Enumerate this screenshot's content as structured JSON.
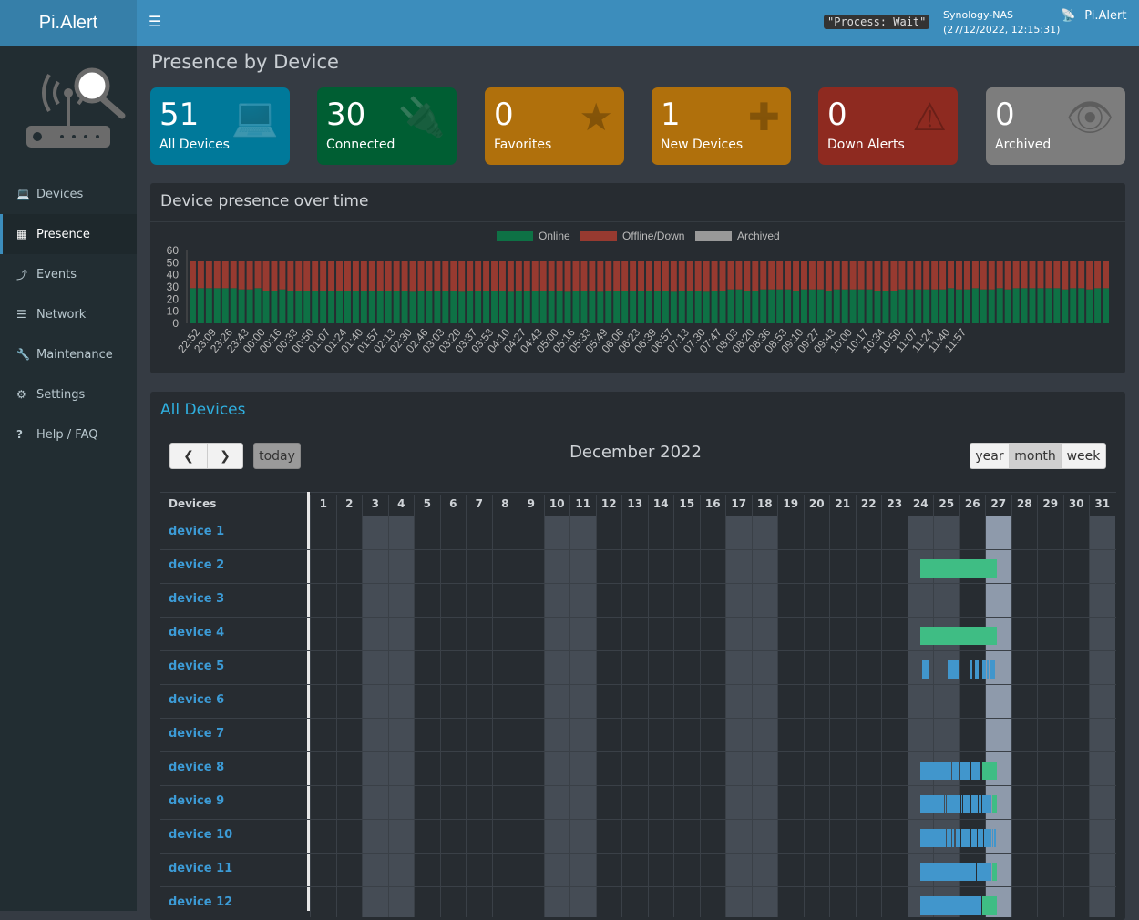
{
  "header": {
    "logo": "Pi.Alert",
    "menu_icon": "hamburger-icon",
    "process_status": "\"Process: Wait\"",
    "host": "Synology-NAS",
    "datetime": "(27/12/2022, 12:15:31)",
    "brand": "Pi.Alert",
    "brand_icon": "router-search-icon"
  },
  "sidebar": {
    "items": [
      {
        "label": "Devices",
        "icon": "laptop-icon"
      },
      {
        "label": "Presence",
        "icon": "calendar-icon",
        "active": true
      },
      {
        "label": "Events",
        "icon": "bolt-icon"
      },
      {
        "label": "Network",
        "icon": "server-icon"
      },
      {
        "label": "Maintenance",
        "icon": "wrench-icon"
      },
      {
        "label": "Settings",
        "icon": "gear-icon"
      },
      {
        "label": "Help / FAQ",
        "icon": "question-icon"
      }
    ]
  },
  "page_title": "Presence by Device",
  "cards": [
    {
      "value": "51",
      "label": "All Devices",
      "icon": "laptop-icon",
      "color": "#00799a"
    },
    {
      "value": "30",
      "label": "Connected",
      "icon": "plug-icon",
      "color": "#005e33"
    },
    {
      "value": "0",
      "label": "Favorites",
      "icon": "star-icon",
      "color": "#b0700c"
    },
    {
      "value": "1",
      "label": "New Devices",
      "icon": "plus-icon",
      "color": "#b0700c"
    },
    {
      "value": "0",
      "label": "Down Alerts",
      "icon": "warning-icon",
      "color": "#8e2a20"
    },
    {
      "value": "0",
      "label": "Archived",
      "icon": "eye-slash-icon",
      "color": "#7d7d7d"
    }
  ],
  "chart_data": {
    "type": "bar",
    "stacked": true,
    "title": "Device presence over time",
    "legend": "top",
    "ylim": [
      0,
      60
    ],
    "yticks": [
      0,
      10,
      20,
      30,
      40,
      50,
      60
    ],
    "series_names": [
      "Online",
      "Offline/Down",
      "Archived"
    ],
    "colors": {
      "Online": "#0e7145",
      "Offline/Down": "#973a30",
      "Archived": "#999999"
    },
    "tick_labels": [
      "22:52",
      "23:09",
      "23:26",
      "23:43",
      "00:00",
      "00:16",
      "00:33",
      "00:50",
      "01:07",
      "01:24",
      "01:40",
      "01:57",
      "02:13",
      "02:30",
      "02:46",
      "03:03",
      "03:20",
      "03:37",
      "03:53",
      "04:10",
      "04:27",
      "04:43",
      "05:00",
      "05:16",
      "05:33",
      "05:49",
      "06:06",
      "06:23",
      "06:39",
      "06:57",
      "07:13",
      "07:30",
      "07:47",
      "08:03",
      "08:20",
      "08:36",
      "08:53",
      "09:10",
      "09:27",
      "09:43",
      "10:00",
      "10:17",
      "10:34",
      "10:50",
      "11:07",
      "11:24",
      "11:40",
      "11:57"
    ],
    "total": 51,
    "online": [
      29,
      29,
      29,
      29,
      29,
      29,
      28,
      28,
      29,
      27,
      27,
      28,
      27,
      27,
      27,
      27,
      27,
      27,
      27,
      27,
      27,
      27,
      27,
      27,
      27,
      27,
      27,
      26,
      27,
      27,
      27,
      27,
      27,
      26,
      27,
      27,
      27,
      27,
      27,
      26,
      27,
      27,
      27,
      27,
      27,
      27,
      26,
      27,
      27,
      27,
      26,
      27,
      27,
      27,
      27,
      27,
      27,
      27,
      27,
      26,
      27,
      27,
      27,
      26,
      27,
      27,
      28,
      28,
      27,
      27,
      28,
      28,
      28,
      28,
      27,
      28,
      28,
      28,
      27,
      28,
      28,
      28,
      28,
      28,
      27,
      27,
      27,
      28,
      28,
      28,
      28,
      28,
      28,
      29,
      28,
      28,
      29,
      28,
      28,
      29,
      28,
      29,
      29,
      29,
      29,
      29,
      29,
      28,
      29,
      29,
      28,
      29,
      29
    ],
    "archived": 0
  },
  "calendar": {
    "section_title": "All Devices",
    "title": "December 2022",
    "today_label": "today",
    "prev_icon": "chevron-left-icon",
    "next_icon": "chevron-right-icon",
    "views": [
      "year",
      "month",
      "week"
    ],
    "active_view": "month",
    "devices_header": "Devices",
    "days": [
      1,
      2,
      3,
      4,
      5,
      6,
      7,
      8,
      9,
      10,
      11,
      12,
      13,
      14,
      15,
      16,
      17,
      18,
      19,
      20,
      21,
      22,
      23,
      24,
      25,
      26,
      27,
      28,
      29,
      30,
      31
    ],
    "weekend_days": [
      3,
      4,
      10,
      11,
      17,
      18,
      24,
      25,
      31
    ],
    "today": 27,
    "colors": {
      "online": "#3fbd84",
      "session": "#4196cc"
    },
    "devices": [
      {
        "name": "device 1",
        "segments": []
      },
      {
        "name": "device 2",
        "segments": [
          [
            24.52,
            27.45,
            "online"
          ]
        ]
      },
      {
        "name": "device 3",
        "segments": []
      },
      {
        "name": "device 4",
        "segments": [
          [
            24.52,
            27.45,
            "online"
          ]
        ]
      },
      {
        "name": "device 5",
        "segments": [
          [
            24.59,
            24.84,
            "session"
          ],
          [
            25.57,
            25.99,
            "session"
          ],
          [
            26.44,
            26.51,
            "session"
          ],
          [
            26.62,
            26.76,
            "session"
          ],
          [
            26.9,
            27.03,
            "session"
          ],
          [
            27.07,
            27.14,
            "session"
          ],
          [
            27.17,
            27.38,
            "session"
          ]
        ]
      },
      {
        "name": "device 6",
        "segments": []
      },
      {
        "name": "device 7",
        "segments": []
      },
      {
        "name": "device 8",
        "segments": [
          [
            24.52,
            25.71,
            "session"
          ],
          [
            25.74,
            26.02,
            "session"
          ],
          [
            26.06,
            26.44,
            "session"
          ],
          [
            26.48,
            26.79,
            "session"
          ],
          [
            26.9,
            27.45,
            "online"
          ]
        ]
      },
      {
        "name": "device 9",
        "segments": [
          [
            24.52,
            25.43,
            "session"
          ],
          [
            25.46,
            25.5,
            "session"
          ],
          [
            25.53,
            26.06,
            "session"
          ],
          [
            26.09,
            26.13,
            "session"
          ],
          [
            26.16,
            26.44,
            "session"
          ],
          [
            26.48,
            26.72,
            "session"
          ],
          [
            26.76,
            26.86,
            "session"
          ],
          [
            26.9,
            27.24,
            "session"
          ],
          [
            27.28,
            27.45,
            "online"
          ]
        ]
      },
      {
        "name": "device 10",
        "segments": [
          [
            24.52,
            25.5,
            "session"
          ],
          [
            25.53,
            25.71,
            "session"
          ],
          [
            25.74,
            25.81,
            "session"
          ],
          [
            25.88,
            26.06,
            "session"
          ],
          [
            26.09,
            26.44,
            "session"
          ],
          [
            26.48,
            26.69,
            "session"
          ],
          [
            26.72,
            26.79,
            "session"
          ],
          [
            26.83,
            26.93,
            "session"
          ],
          [
            26.96,
            27.24,
            "session"
          ],
          [
            27.28,
            27.31,
            "session"
          ],
          [
            27.35,
            27.42,
            "session"
          ]
        ]
      },
      {
        "name": "device 11",
        "segments": [
          [
            24.52,
            25.6,
            "session"
          ],
          [
            25.64,
            26.65,
            "session"
          ],
          [
            26.69,
            27.24,
            "session"
          ],
          [
            27.28,
            27.45,
            "online"
          ]
        ]
      },
      {
        "name": "device 12",
        "segments": [
          [
            24.52,
            26.86,
            "session"
          ],
          [
            26.9,
            27.45,
            "online"
          ]
        ]
      }
    ]
  }
}
